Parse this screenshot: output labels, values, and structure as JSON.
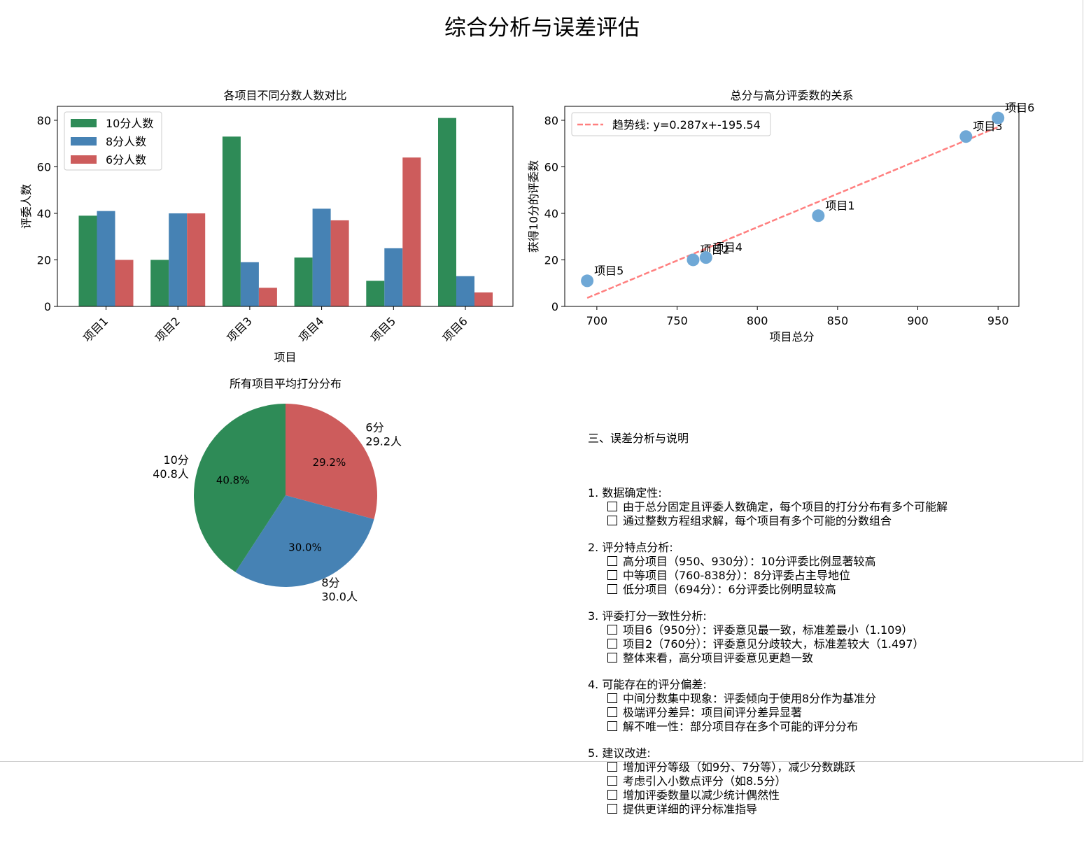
{
  "title": "综合分析与误差评估",
  "chart_data": [
    {
      "type": "bar",
      "title": "各项目不同分数人数对比",
      "xlabel": "项目",
      "ylabel": "评委人数",
      "categories": [
        "项目1",
        "项目2",
        "项目3",
        "项目4",
        "项目5",
        "项目6"
      ],
      "series": [
        {
          "name": "10分人数",
          "color": "#2e8b57",
          "values": [
            39,
            20,
            73,
            21,
            11,
            81
          ]
        },
        {
          "name": "8分人数",
          "color": "#4682b4",
          "values": [
            41,
            40,
            19,
            42,
            25,
            13
          ]
        },
        {
          "name": "6分人数",
          "color": "#cd5c5c",
          "values": [
            20,
            40,
            8,
            37,
            64,
            6
          ]
        }
      ],
      "ylim": [
        0,
        86
      ],
      "yticks": [
        0,
        20,
        40,
        60,
        80
      ],
      "legend": "top-left"
    },
    {
      "type": "scatter",
      "title": "总分与高分评委数的关系",
      "xlabel": "项目总分",
      "ylabel": "获得10分的评委数",
      "points": [
        {
          "label": "项目1",
          "x": 838,
          "y": 39
        },
        {
          "label": "项目2",
          "x": 760,
          "y": 20
        },
        {
          "label": "项目3",
          "x": 930,
          "y": 73
        },
        {
          "label": "项目4",
          "x": 768,
          "y": 21
        },
        {
          "label": "项目5",
          "x": 694,
          "y": 11
        },
        {
          "label": "项目6",
          "x": 950,
          "y": 81
        }
      ],
      "trend": {
        "label": "趋势线: y=0.287x+-195.54",
        "slope": 0.287,
        "intercept": -195.54,
        "color": "#ff7f7f"
      },
      "point_color": "#6fa8d6",
      "xlim": [
        680,
        963
      ],
      "ylim": [
        0,
        86
      ],
      "xticks": [
        700,
        750,
        800,
        850,
        900,
        950
      ],
      "yticks": [
        0,
        20,
        40,
        60,
        80
      ],
      "legend": "top-left"
    },
    {
      "type": "pie",
      "title": "所有项目平均打分分布",
      "slices": [
        {
          "name": "6分",
          "label": "6分\n29.2人",
          "value": 29.2,
          "pct": "29.2%",
          "color": "#cd5c5c"
        },
        {
          "name": "8分",
          "label": "8分\n30.0人",
          "value": 30.0,
          "pct": "30.0%",
          "color": "#4682b4"
        },
        {
          "name": "10分",
          "label": "10分\n40.8人",
          "value": 40.8,
          "pct": "40.8%",
          "color": "#2e8b57"
        }
      ]
    }
  ],
  "analysis": {
    "title": "三、误差分析与说明",
    "sections": [
      {
        "heading": "1. 数据确定性:",
        "items": [
          "由于总分固定且评委人数确定，每个项目的打分分布有多个可能解",
          "通过整数方程组求解，每个项目有多个可能的分数组合"
        ]
      },
      {
        "heading": "2. 评分特点分析:",
        "items": [
          "高分项目（950、930分）：10分评委比例显著较高",
          "中等项目（760-838分）：8分评委占主导地位",
          "低分项目（694分）：6分评委比例明显较高"
        ]
      },
      {
        "heading": "3. 评委打分一致性分析:",
        "items": [
          "项目6（950分）：评委意见最一致，标准差最小（1.109）",
          "项目2（760分）：评委意见分歧较大，标准差较大（1.497）",
          "整体来看，高分项目评委意见更趋一致"
        ]
      },
      {
        "heading": "4. 可能存在的评分偏差:",
        "items": [
          "中间分数集中现象：评委倾向于使用8分作为基准分",
          "极端评分差异：项目间评分差异显著",
          "解不唯一性：部分项目存在多个可能的评分分布"
        ]
      },
      {
        "heading": "5. 建议改进:",
        "items": [
          "增加评分等级（如9分、7分等），减少分数跳跃",
          "考虑引入小数点评分（如8.5分）",
          "增加评委数量以减少统计偶然性",
          "提供更详细的评分标准指导"
        ]
      }
    ]
  }
}
